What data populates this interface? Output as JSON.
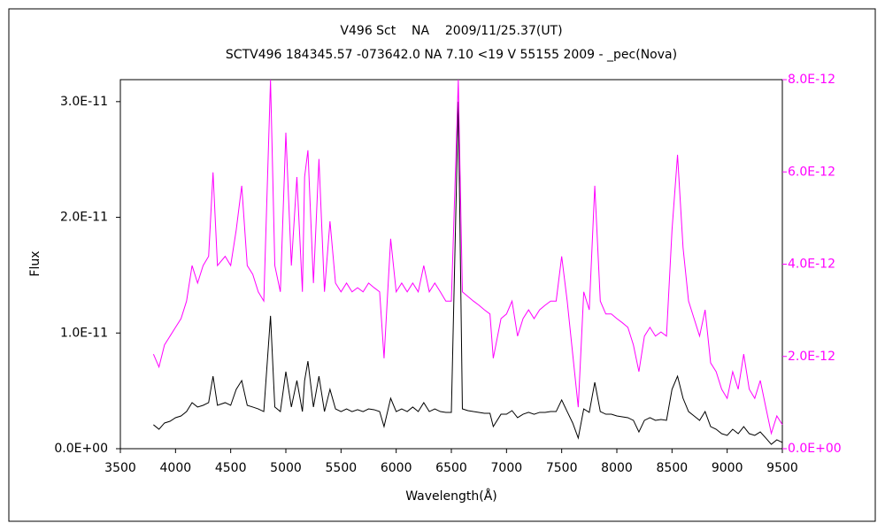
{
  "chart_data": {
    "type": "line",
    "title": "V496 Sct    NA    2009/11/25.37(UT)",
    "subtitle": "SCTV496 184345.57 -073642.0 NA 7.10 <19 V 55155 2009 - _pec(Nova)",
    "xlabel": "Wavelength(Å)",
    "ylabel": "Flux",
    "x": [
      3800,
      3850,
      3900,
      3950,
      4000,
      4050,
      4100,
      4150,
      4200,
      4250,
      4300,
      4340,
      4380,
      4450,
      4500,
      4550,
      4600,
      4650,
      4700,
      4750,
      4800,
      4861,
      4900,
      4950,
      5000,
      5050,
      5100,
      5150,
      5170,
      5200,
      5250,
      5300,
      5350,
      5400,
      5450,
      5500,
      5550,
      5600,
      5650,
      5700,
      5750,
      5800,
      5850,
      5890,
      5950,
      6000,
      6050,
      6100,
      6150,
      6200,
      6250,
      6300,
      6350,
      6400,
      6450,
      6500,
      6563,
      6600,
      6650,
      6700,
      6750,
      6800,
      6850,
      6880,
      6950,
      7000,
      7050,
      7100,
      7150,
      7200,
      7250,
      7300,
      7350,
      7400,
      7450,
      7500,
      7550,
      7600,
      7650,
      7700,
      7750,
      7800,
      7850,
      7900,
      7950,
      8000,
      8050,
      8100,
      8150,
      8200,
      8250,
      8300,
      8350,
      8400,
      8450,
      8500,
      8550,
      8600,
      8650,
      8700,
      8750,
      8800,
      8850,
      8900,
      8950,
      9000,
      9050,
      9100,
      9150,
      9200,
      9250,
      9300,
      9350,
      9400,
      9450,
      9500
    ],
    "series": [
      {
        "color": "#000000",
        "axis": "y",
        "values": [
          2.07e-12,
          1.68e-12,
          2.22e-12,
          2.37e-12,
          2.68e-12,
          2.83e-12,
          3.21e-12,
          3.98e-12,
          3.6e-12,
          3.75e-12,
          3.98e-12,
          6.27e-12,
          3.75e-12,
          3.98e-12,
          3.75e-12,
          5.13e-12,
          5.89e-12,
          3.75e-12,
          3.6e-12,
          3.44e-12,
          3.21e-12,
          1.148e-11,
          3.6e-12,
          3.21e-12,
          6.66e-12,
          3.6e-12,
          5.89e-12,
          3.21e-12,
          5.89e-12,
          7.57e-12,
          3.6e-12,
          6.27e-12,
          3.21e-12,
          5.13e-12,
          3.44e-12,
          3.21e-12,
          3.44e-12,
          3.21e-12,
          3.37e-12,
          3.21e-12,
          3.44e-12,
          3.37e-12,
          3.21e-12,
          1.91e-12,
          4.36e-12,
          3.21e-12,
          3.44e-12,
          3.21e-12,
          3.6e-12,
          3.21e-12,
          3.98e-12,
          3.21e-12,
          3.44e-12,
          3.21e-12,
          3.14e-12,
          3.14e-12,
          3e-11,
          3.44e-12,
          3.29e-12,
          3.21e-12,
          3.14e-12,
          3.06e-12,
          3.06e-12,
          1.91e-12,
          2.98e-12,
          2.98e-12,
          3.29e-12,
          2.68e-12,
          2.98e-12,
          3.14e-12,
          2.98e-12,
          3.14e-12,
          3.14e-12,
          3.21e-12,
          3.21e-12,
          4.21e-12,
          3.21e-12,
          2.22e-12,
          9.2e-13,
          3.44e-12,
          3.14e-12,
          5.74e-12,
          3.21e-12,
          2.98e-12,
          2.98e-12,
          2.83e-12,
          2.75e-12,
          2.68e-12,
          2.45e-12,
          1.45e-12,
          2.45e-12,
          2.68e-12,
          2.45e-12,
          2.52e-12,
          2.45e-12,
          5.13e-12,
          6.27e-12,
          4.36e-12,
          3.21e-12,
          2.83e-12,
          2.45e-12,
          3.21e-12,
          1.91e-12,
          1.68e-12,
          1.3e-12,
          1.15e-12,
          1.68e-12,
          1.3e-12,
          1.91e-12,
          1.3e-12,
          1.15e-12,
          1.45e-12,
          9.2e-13,
          3.8e-13,
          7.7e-13,
          5.4e-13
        ]
      },
      {
        "color": "#ff00ff",
        "axis": "y2",
        "values": [
          2.05e-12,
          1.77e-12,
          2.25e-12,
          2.44e-12,
          2.63e-12,
          2.82e-12,
          3.2e-12,
          3.97e-12,
          3.59e-12,
          3.97e-12,
          4.17e-12,
          5.99e-12,
          3.97e-12,
          4.17e-12,
          3.97e-12,
          4.74e-12,
          5.7e-12,
          3.97e-12,
          3.78e-12,
          3.4e-12,
          3.2e-12,
          8e-12,
          3.97e-12,
          3.4e-12,
          6.85e-12,
          3.97e-12,
          5.89e-12,
          3.4e-12,
          5.89e-12,
          6.47e-12,
          3.59e-12,
          6.28e-12,
          3.4e-12,
          4.93e-12,
          3.59e-12,
          3.4e-12,
          3.59e-12,
          3.4e-12,
          3.49e-12,
          3.4e-12,
          3.59e-12,
          3.49e-12,
          3.4e-12,
          1.96e-12,
          4.55e-12,
          3.4e-12,
          3.59e-12,
          3.4e-12,
          3.59e-12,
          3.4e-12,
          3.97e-12,
          3.4e-12,
          3.59e-12,
          3.4e-12,
          3.2e-12,
          3.2e-12,
          8e-12,
          3.4e-12,
          3.3e-12,
          3.2e-12,
          3.11e-12,
          3.01e-12,
          2.92e-12,
          1.96e-12,
          2.82e-12,
          2.92e-12,
          3.2e-12,
          2.44e-12,
          2.82e-12,
          3.01e-12,
          2.82e-12,
          3.01e-12,
          3.11e-12,
          3.2e-12,
          3.2e-12,
          4.17e-12,
          3.2e-12,
          2.05e-12,
          9e-13,
          3.4e-12,
          3.01e-12,
          5.7e-12,
          3.2e-12,
          2.92e-12,
          2.92e-12,
          2.82e-12,
          2.73e-12,
          2.63e-12,
          2.25e-12,
          1.67e-12,
          2.44e-12,
          2.63e-12,
          2.44e-12,
          2.53e-12,
          2.44e-12,
          4.74e-12,
          6.37e-12,
          4.36e-12,
          3.2e-12,
          2.82e-12,
          2.44e-12,
          3.01e-12,
          1.86e-12,
          1.67e-12,
          1.29e-12,
          1.09e-12,
          1.67e-12,
          1.29e-12,
          2.05e-12,
          1.29e-12,
          1.09e-12,
          1.48e-12,
          9e-13,
          3.3e-13,
          7.1e-13,
          5.2e-13
        ]
      }
    ],
    "xlim": [
      3500,
      9500
    ],
    "xticks": [
      3500,
      4000,
      4500,
      5000,
      5500,
      6000,
      6500,
      7000,
      7500,
      8000,
      8500,
      9000,
      9500
    ],
    "ylim": [
      0,
      3.19e-11
    ],
    "yticks": [
      {
        "value": 0,
        "label": "0.0E+00"
      },
      {
        "value": 1e-11,
        "label": "1.0E-11"
      },
      {
        "value": 2e-11,
        "label": "2.0E-11"
      },
      {
        "value": 3e-11,
        "label": "3.0E-11"
      }
    ],
    "y2lim": [
      0,
      8e-12
    ],
    "y2ticks": [
      {
        "value": 0,
        "label": "0.0E+00"
      },
      {
        "value": 2e-12,
        "label": "2.0E-12"
      },
      {
        "value": 4e-12,
        "label": "4.0E-12"
      },
      {
        "value": 6e-12,
        "label": "6.0E-12"
      },
      {
        "value": 8e-12,
        "label": "8.0E-12"
      }
    ],
    "y2color": "#ff00ff"
  }
}
